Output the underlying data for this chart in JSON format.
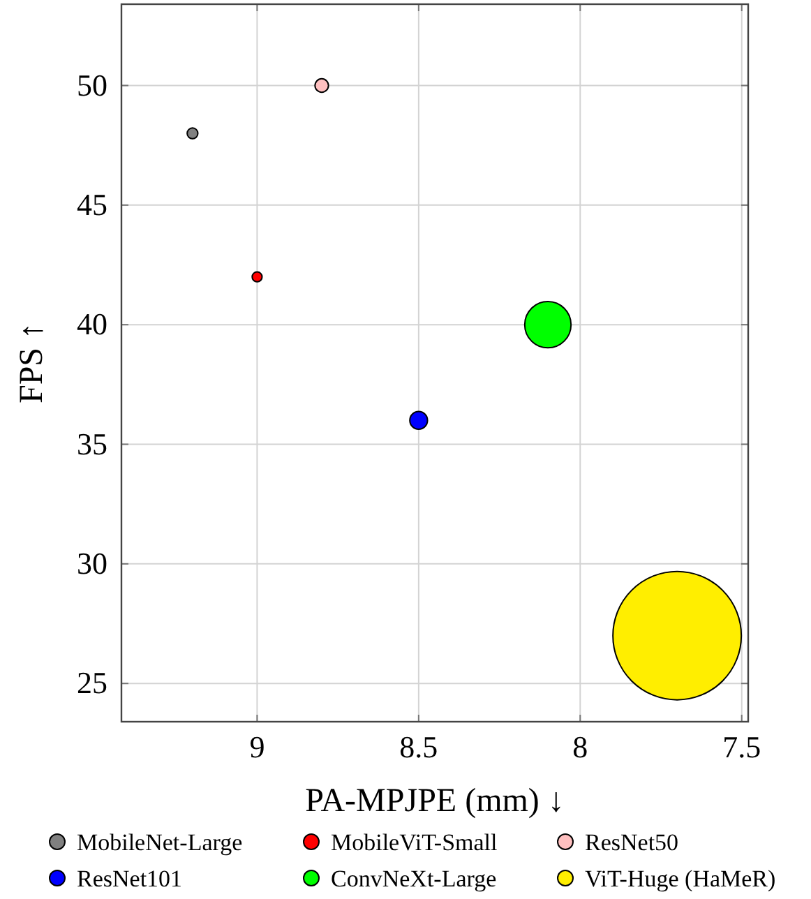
{
  "chart_data": {
    "type": "bubble",
    "xlabel": "PA-MPJPE (mm) ↓",
    "ylabel": "FPS ↑",
    "xlim": [
      9.42,
      7.48
    ],
    "ylim": [
      23.4,
      53.4
    ],
    "xticks": [
      9,
      8.5,
      8,
      7.5
    ],
    "yticks": [
      25,
      30,
      35,
      40,
      45,
      50
    ],
    "grid": true,
    "legend": "bottom",
    "marker": "circle",
    "series": [
      {
        "name": "MobileNet-Large",
        "color": "#808080",
        "x": [
          9.2
        ],
        "values": [
          48
        ],
        "sizes": [
          0.007
        ]
      },
      {
        "name": "MobileViT-Small",
        "color": "#ff0000",
        "x": [
          9.0
        ],
        "values": [
          42
        ],
        "sizes": [
          0.006
        ]
      },
      {
        "name": "ResNet50",
        "color": "#ffc0c0",
        "x": [
          8.8
        ],
        "values": [
          50
        ],
        "sizes": [
          0.011
        ]
      },
      {
        "name": "ResNet101",
        "color": "#0000ff",
        "x": [
          8.5
        ],
        "values": [
          36
        ],
        "sizes": [
          0.019
        ]
      },
      {
        "name": "ConvNeXt-Large",
        "color": "#00ff00",
        "x": [
          8.1
        ],
        "values": [
          40
        ],
        "sizes": [
          0.13
        ]
      },
      {
        "name": "ViT-Huge (HaMeR)",
        "color": "#ffee00",
        "x": [
          7.7
        ],
        "values": [
          27
        ],
        "sizes": [
          1
        ]
      }
    ]
  }
}
